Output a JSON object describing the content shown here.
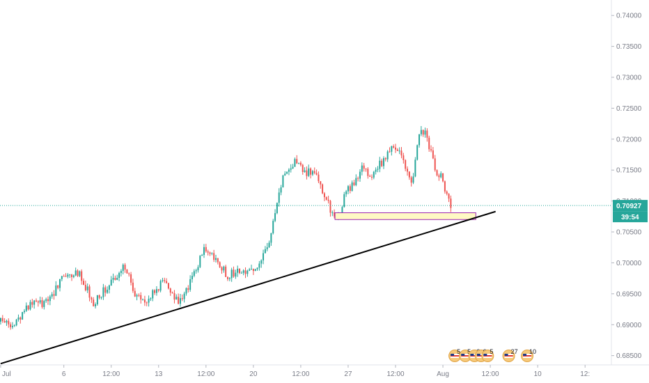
{
  "chart_data": {
    "type": "candlestick",
    "y_ticks": [
      "0.74000",
      "0.73500",
      "0.73000",
      "0.72500",
      "0.72000",
      "0.71500",
      "0.71000",
      "0.70500",
      "0.70000",
      "0.69500",
      "0.69000",
      "0.68500"
    ],
    "y_tick_values": [
      0.74,
      0.735,
      0.73,
      0.725,
      0.72,
      0.715,
      0.71,
      0.705,
      0.7,
      0.695,
      0.69,
      0.685
    ],
    "ylim": [
      0.6835,
      0.7425
    ],
    "x_ticks": [
      "Jul",
      "6",
      "12:00",
      "13",
      "12:00",
      "20",
      "12:00",
      "27",
      "12:00",
      "Aug",
      "12:00",
      "10",
      "12:"
    ],
    "x_tick_values": [
      0,
      96,
      168,
      240,
      312,
      384,
      456,
      528,
      600,
      672,
      744,
      816,
      888
    ],
    "xlim": [
      -1,
      928
    ],
    "anchors": [
      [
        0,
        0.6905
      ],
      [
        20,
        0.6895
      ],
      [
        45,
        0.6935
      ],
      [
        70,
        0.6935
      ],
      [
        95,
        0.6975
      ],
      [
        120,
        0.6985
      ],
      [
        140,
        0.6935
      ],
      [
        165,
        0.6965
      ],
      [
        190,
        0.6995
      ],
      [
        205,
        0.6945
      ],
      [
        220,
        0.6935
      ],
      [
        250,
        0.6975
      ],
      [
        262,
        0.695
      ],
      [
        275,
        0.6935
      ],
      [
        290,
        0.6975
      ],
      [
        310,
        0.7025
      ],
      [
        325,
        0.7005
      ],
      [
        345,
        0.698
      ],
      [
        360,
        0.6985
      ],
      [
        380,
        0.6985
      ],
      [
        395,
        0.7005
      ],
      [
        410,
        0.704
      ],
      [
        420,
        0.71
      ],
      [
        430,
        0.7145
      ],
      [
        440,
        0.715
      ],
      [
        452,
        0.717
      ],
      [
        460,
        0.7145
      ],
      [
        475,
        0.715
      ],
      [
        490,
        0.711
      ],
      [
        505,
        0.708
      ],
      [
        515,
        0.7085
      ],
      [
        525,
        0.7115
      ],
      [
        535,
        0.7125
      ],
      [
        550,
        0.7155
      ],
      [
        565,
        0.714
      ],
      [
        580,
        0.7165
      ],
      [
        595,
        0.7185
      ],
      [
        605,
        0.718
      ],
      [
        618,
        0.715
      ],
      [
        625,
        0.713
      ],
      [
        635,
        0.72
      ],
      [
        645,
        0.722
      ],
      [
        652,
        0.7185
      ],
      [
        660,
        0.715
      ],
      [
        670,
        0.714
      ],
      [
        678,
        0.711
      ],
      [
        684,
        0.7085
      ]
    ],
    "seed": 1729,
    "current_price": {
      "label": "0.70927",
      "value": 0.70927
    },
    "countdown": "39:54",
    "trendline": {
      "from": [
        0,
        0.6837
      ],
      "to": [
        752,
        0.7083
      ]
    },
    "support_zone": {
      "x_from": 508,
      "x_to": 722,
      "y_low": 0.707,
      "y_high": 0.7081
    },
    "events": [
      {
        "x": 690,
        "text": "5"
      },
      {
        "x": 706,
        "text": "5"
      },
      {
        "x": 720,
        "text": "2"
      },
      {
        "x": 730,
        "text": "9"
      },
      {
        "x": 740,
        "text": "5"
      },
      {
        "x": 772,
        "text": "27"
      },
      {
        "x": 800,
        "text": "10"
      }
    ],
    "colors": {
      "up": "#26a69a",
      "down": "#ef5350",
      "price_line": "#26a69a",
      "trendline": "#000000",
      "zone_fill": "#fff9c4",
      "zone_border": "#9c27b0",
      "axis_text": "#787b86"
    }
  }
}
